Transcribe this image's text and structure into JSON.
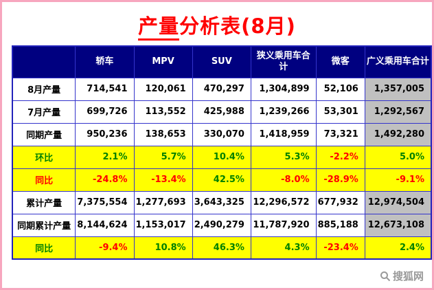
{
  "page": {
    "title_part1": "产量",
    "title_part2": "分析表(8月)",
    "watermark": "搜狐网"
  },
  "colors": {
    "positive": "#008000",
    "negative": "#ff0000",
    "header_bg": "#000080",
    "header_text": "#ffffff",
    "highlight_row_bg": "#ffff00",
    "total_column_bg": "#c0c0c0",
    "border": "#3333cc",
    "title": "#ff0000",
    "frame": "#f7a6be"
  },
  "chart_data": {
    "type": "table",
    "title": "产量分析表(8月)",
    "columns": [
      "",
      "轿车",
      "MPV",
      "SUV",
      "狭义乘用车合计",
      "微客",
      "广义乘用车合计"
    ],
    "rows": [
      {
        "label": "8月产量",
        "kind": "number",
        "values": [
          "714,541",
          "120,061",
          "470,297",
          "1,304,899",
          "52,106",
          "1,357,005"
        ]
      },
      {
        "label": "7月产量",
        "kind": "number",
        "values": [
          "699,726",
          "113,552",
          "425,988",
          "1,239,266",
          "53,301",
          "1,292,567"
        ]
      },
      {
        "label": "同期产量",
        "kind": "number",
        "values": [
          "950,236",
          "138,653",
          "330,070",
          "1,418,959",
          "73,321",
          "1,492,280"
        ]
      },
      {
        "label": "环比",
        "kind": "percent",
        "label_color": "#008000",
        "values": [
          "2.1%",
          "5.7%",
          "10.4%",
          "5.3%",
          "-2.2%",
          "5.0%"
        ]
      },
      {
        "label": "同比",
        "kind": "percent",
        "label_color": "#ff0000",
        "values": [
          "-24.8%",
          "-13.4%",
          "42.5%",
          "-8.0%",
          "-28.9%",
          "-9.1%"
        ]
      },
      {
        "label": "累计产量",
        "kind": "number",
        "values": [
          "7,375,554",
          "1,277,693",
          "3,643,325",
          "12,296,572",
          "677,932",
          "12,974,504"
        ]
      },
      {
        "label": "同期累计产量",
        "kind": "number",
        "values": [
          "8,144,624",
          "1,153,017",
          "2,490,279",
          "11,787,920",
          "885,188",
          "12,673,108"
        ]
      },
      {
        "label": "同比",
        "kind": "percent",
        "label_color": "#008000",
        "values": [
          "-9.4%",
          "10.8%",
          "46.3%",
          "4.3%",
          "-23.4%",
          "2.4%"
        ]
      }
    ]
  }
}
